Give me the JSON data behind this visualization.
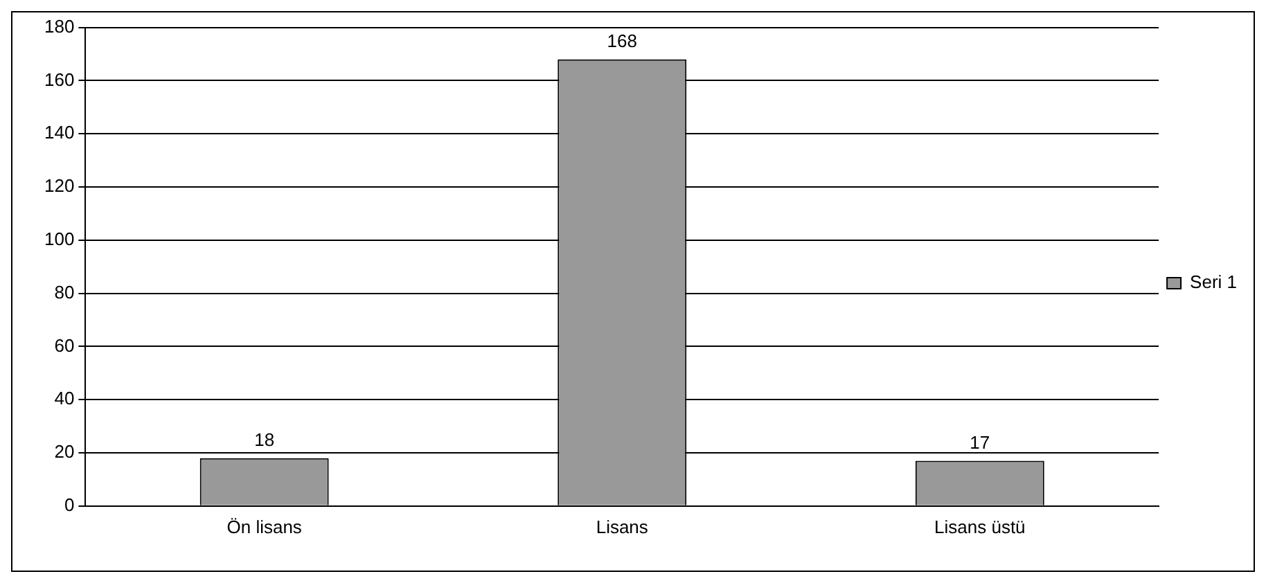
{
  "chart_data": {
    "type": "bar",
    "categories": [
      "Ön lisans",
      "Lisans",
      "Lisans üstü"
    ],
    "series": [
      {
        "name": "Seri 1",
        "color": "#999999",
        "values": [
          18,
          168,
          17
        ]
      }
    ],
    "ylim": [
      0,
      180
    ],
    "yticks": [
      0,
      20,
      40,
      60,
      80,
      100,
      120,
      140,
      160,
      180
    ],
    "grid": "y",
    "legend": "right",
    "data_labels": true
  }
}
